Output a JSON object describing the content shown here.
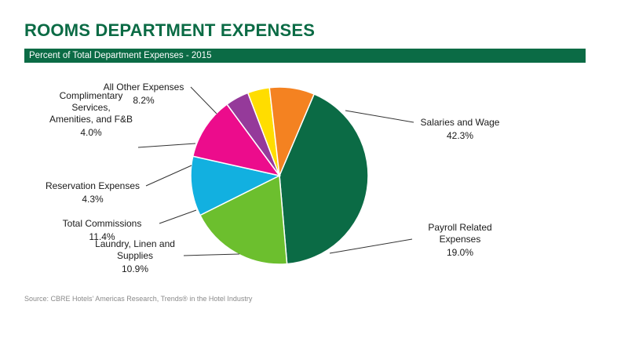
{
  "header": {
    "title": "ROOMS DEPARTMENT EXPENSES",
    "subtitle": "Percent of Total Department Expenses - 2015"
  },
  "footer": {
    "source": "Source: CBRE Hotels’ Americas Research, Trends® in the Hotel Industry"
  },
  "colors": {
    "brand_green": "#0b6b45",
    "slice_salaries": "#0b6b45",
    "slice_payroll": "#6cbf2e",
    "slice_laundry": "#12b0e0",
    "slice_commissions": "#ec0c8c",
    "slice_reservation": "#953a9a",
    "slice_complimentary": "#ffdd00",
    "slice_other": "#f48221"
  },
  "chart_data": {
    "type": "pie",
    "title": "ROOMS DEPARTMENT EXPENSES",
    "subtitle": "Percent of Total Department Expenses - 2015",
    "unit": "%",
    "slices": [
      {
        "label_lines": [
          "Salaries and Wage"
        ],
        "value": 42.3,
        "value_text": "42.3%",
        "color": "#0b6b45"
      },
      {
        "label_lines": [
          "Payroll Related",
          "Expenses"
        ],
        "value": 19.0,
        "value_text": "19.0%",
        "color": "#6cbf2e"
      },
      {
        "label_lines": [
          "Laundry, Linen and",
          "Supplies"
        ],
        "value": 10.9,
        "value_text": "10.9%",
        "color": "#12b0e0"
      },
      {
        "label_lines": [
          "Total Commissions"
        ],
        "value": 11.4,
        "value_text": "11.4%",
        "color": "#ec0c8c"
      },
      {
        "label_lines": [
          "Reservation Expenses"
        ],
        "value": 4.3,
        "value_text": "4.3%",
        "color": "#953a9a"
      },
      {
        "label_lines": [
          "Complimentary",
          "Services,",
          "Amenities, and F&B"
        ],
        "value": 4.0,
        "value_text": "4.0%",
        "color": "#ffdd00"
      },
      {
        "label_lines": [
          "All Other Expenses"
        ],
        "value": 8.2,
        "value_text": "8.2%",
        "color": "#f48221"
      }
    ]
  }
}
